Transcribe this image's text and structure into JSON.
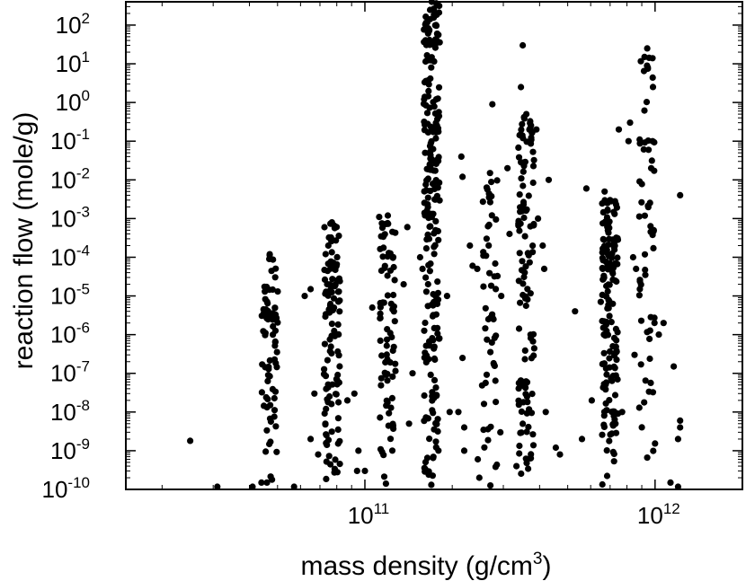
{
  "chart_data": {
    "type": "scatter",
    "xlabel": "mass density (g/cm",
    "xlabel_superscript": "3",
    "xlabel_close": ")",
    "ylabel": "reaction flow (mole/g)",
    "x_scale": "log",
    "y_scale": "log",
    "xlim": [
      15000000000.0,
      2000000000000.0
    ],
    "ylim": [
      1e-10,
      400
    ],
    "grid": false,
    "legend": "none",
    "point_color": "#000000",
    "x_ticks": [
      {
        "base": "10",
        "exp": "11",
        "value": 100000000000.0
      },
      {
        "base": "10",
        "exp": "12",
        "value": 1000000000000.0
      }
    ],
    "y_ticks": [
      {
        "base": "10",
        "exp": "-10",
        "value": 1e-10
      },
      {
        "base": "10",
        "exp": "-9",
        "value": 1e-09
      },
      {
        "base": "10",
        "exp": "-8",
        "value": 1e-08
      },
      {
        "base": "10",
        "exp": "-7",
        "value": 1e-07
      },
      {
        "base": "10",
        "exp": "-6",
        "value": 1e-06
      },
      {
        "base": "10",
        "exp": "-5",
        "value": 1e-05
      },
      {
        "base": "10",
        "exp": "-4",
        "value": 0.0001
      },
      {
        "base": "10",
        "exp": "-3",
        "value": 0.001
      },
      {
        "base": "10",
        "exp": "-2",
        "value": 0.01
      },
      {
        "base": "10",
        "exp": "-1",
        "value": 0.1
      },
      {
        "base": "10",
        "exp": "0",
        "value": 1
      },
      {
        "base": "10",
        "exp": "1",
        "value": 10
      },
      {
        "base": "10",
        "exp": "2",
        "value": 100
      }
    ],
    "columns": [
      {
        "density": 47000000000.0,
        "ymin": 1e-10,
        "ymax": 0.00012,
        "n": 75
      },
      {
        "density": 77000000000.0,
        "ymin": 1e-10,
        "ymax": 0.0008,
        "n": 115
      },
      {
        "density": 120000000000.0,
        "ymin": 1e-10,
        "ymax": 0.0012,
        "n": 80
      },
      {
        "density": 170000000000.0,
        "ymin": 1e-10,
        "ymax": 400,
        "n": 230
      },
      {
        "density": 270000000000.0,
        "ymin": 1e-10,
        "ymax": 0.015,
        "n": 55
      },
      {
        "density": 360000000000.0,
        "ymin": 1e-10,
        "ymax": 0.5,
        "n": 120
      },
      {
        "density": 700000000000.0,
        "ymin": 1e-10,
        "ymax": 0.003,
        "n": 150
      },
      {
        "density": 940000000000.0,
        "ymin": 1e-10,
        "ymax": 25,
        "n": 60
      }
    ],
    "points": [
      {
        "x": 25000000000.0,
        "y": 1.8e-09
      },
      {
        "x": 31000000000.0,
        "y": 1e-10
      },
      {
        "x": 41000000000.0,
        "y": 1e-10
      },
      {
        "x": 44000000000.0,
        "y": 1.5e-10
      },
      {
        "x": 57000000000.0,
        "y": 1e-10
      },
      {
        "x": 62000000000.0,
        "y": 1e-05
      },
      {
        "x": 65000000000.0,
        "y": 1.5e-05
      },
      {
        "x": 65000000000.0,
        "y": 2e-09
      },
      {
        "x": 67000000000.0,
        "y": 3e-08
      },
      {
        "x": 69000000000.0,
        "y": 8e-10
      },
      {
        "x": 87000000000.0,
        "y": 2e-08
      },
      {
        "x": 92000000000.0,
        "y": 3e-08
      },
      {
        "x": 94000000000.0,
        "y": 3e-10
      },
      {
        "x": 95000000000.0,
        "y": 1e-09
      },
      {
        "x": 100000000000.0,
        "y": 3e-10
      },
      {
        "x": 106000000000.0,
        "y": 5e-06
      },
      {
        "x": 112000000000.0,
        "y": 0.0011
      },
      {
        "x": 136000000000.0,
        "y": 2e-05
      },
      {
        "x": 140000000000.0,
        "y": 0.0006
      },
      {
        "x": 142000000000.0,
        "y": 5e-09
      },
      {
        "x": 146000000000.0,
        "y": 1e-07
      },
      {
        "x": 155000000000.0,
        "y": 0.0001
      },
      {
        "x": 158000000000.0,
        "y": 5e-05
      },
      {
        "x": 192000000000.0,
        "y": 1e-05
      },
      {
        "x": 196000000000.0,
        "y": 1e-08
      },
      {
        "x": 210000000000.0,
        "y": 1e-08
      },
      {
        "x": 215000000000.0,
        "y": 0.04
      },
      {
        "x": 217000000000.0,
        "y": 0.012
      },
      {
        "x": 217000000000.0,
        "y": 2.5e-07
      },
      {
        "x": 220000000000.0,
        "y": 4e-09
      },
      {
        "x": 220000000000.0,
        "y": 1e-09
      },
      {
        "x": 230000000000.0,
        "y": 0.0002
      },
      {
        "x": 235000000000.0,
        "y": 6e-05
      },
      {
        "x": 244000000000.0,
        "y": 5e-05
      },
      {
        "x": 245000000000.0,
        "y": 6e-10
      },
      {
        "x": 248000000000.0,
        "y": 2e-10
      },
      {
        "x": 275000000000.0,
        "y": 0.9
      },
      {
        "x": 293000000000.0,
        "y": 3e-09
      },
      {
        "x": 295000000000.0,
        "y": 1e-05
      },
      {
        "x": 310000000000.0,
        "y": 0.02
      },
      {
        "x": 315000000000.0,
        "y": 0.0004
      },
      {
        "x": 333000000000.0,
        "y": 4e-10
      },
      {
        "x": 345000000000.0,
        "y": 2.5
      },
      {
        "x": 350000000000.0,
        "y": 30
      },
      {
        "x": 390000000000.0,
        "y": 0.2
      },
      {
        "x": 395000000000.0,
        "y": 0.001
      },
      {
        "x": 410000000000.0,
        "y": 0.0002
      },
      {
        "x": 415000000000.0,
        "y": 5e-05
      },
      {
        "x": 420000000000.0,
        "y": 1e-08
      },
      {
        "x": 430000000000.0,
        "y": 0.01
      },
      {
        "x": 455000000000.0,
        "y": 1.2e-09
      },
      {
        "x": 470000000000.0,
        "y": 8e-10
      },
      {
        "x": 530000000000.0,
        "y": 4e-06
      },
      {
        "x": 560000000000.0,
        "y": 2e-09
      },
      {
        "x": 580000000000.0,
        "y": 0.006
      },
      {
        "x": 605000000000.0,
        "y": 2e-08
      },
      {
        "x": 650000000000.0,
        "y": 7e-06
      },
      {
        "x": 670000000000.0,
        "y": 0.005
      },
      {
        "x": 750000000000.0,
        "y": 0.2
      },
      {
        "x": 770000000000.0,
        "y": 1e-08
      },
      {
        "x": 810000000000.0,
        "y": 0.1
      },
      {
        "x": 820000000000.0,
        "y": 0.3
      },
      {
        "x": 840000000000.0,
        "y": 0.0001
      },
      {
        "x": 850000000000.0,
        "y": 3e-07
      },
      {
        "x": 860000000000.0,
        "y": 5e-05
      },
      {
        "x": 920000000000.0,
        "y": 15
      },
      {
        "x": 950000000000.0,
        "y": 0.06
      },
      {
        "x": 970000000000.0,
        "y": 0.02
      },
      {
        "x": 990000000000.0,
        "y": 0.0005
      },
      {
        "x": 1030000000000.0,
        "y": 1e-06
      },
      {
        "x": 1070000000000.0,
        "y": 2e-06
      },
      {
        "x": 1130000000000.0,
        "y": 1.5e-10
      },
      {
        "x": 1160000000000.0,
        "y": 1.5e-07
      },
      {
        "x": 1200000000000.0,
        "y": 1e-10
      },
      {
        "x": 1200000000000.0,
        "y": 2e-09
      },
      {
        "x": 1220000000000.0,
        "y": 0.004
      },
      {
        "x": 1220000000000.0,
        "y": 4e-09
      },
      {
        "x": 1220000000000.0,
        "y": 6e-09
      }
    ]
  }
}
